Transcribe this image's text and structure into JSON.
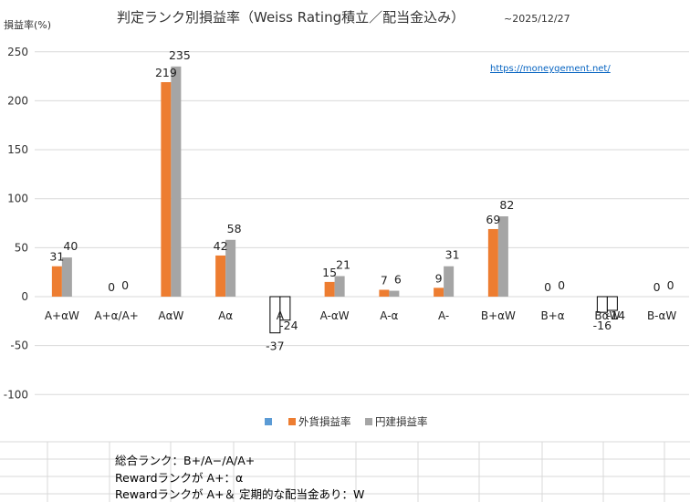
{
  "chart_data": {
    "type": "bar",
    "title": "判定ランク別損益率（Weiss Rating積立／配当金込み）",
    "date_note": "~2025/12/27",
    "ylabel": "損益率(%)",
    "source_link": "https://moneygement.net/",
    "ylim": [
      -100,
      250
    ],
    "yticks": [
      -100,
      -50,
      0,
      50,
      100,
      150,
      200,
      250
    ],
    "grid": true,
    "legend_position": "bottom",
    "categories": [
      "A+αW",
      "A+α/A+",
      "AαW",
      "Aα",
      "A",
      "A-αW",
      "A-α",
      "A-",
      "B+αW",
      "B+α",
      "BαW",
      "B-αW"
    ],
    "series": [
      {
        "name": "",
        "color": "#5B9BD5",
        "values": [
          null,
          null,
          null,
          null,
          null,
          null,
          null,
          null,
          null,
          null,
          null,
          null
        ]
      },
      {
        "name": "外貨損益率",
        "color": "#ED7D31",
        "values": [
          31,
          0,
          219,
          42,
          -37,
          15,
          7,
          9,
          69,
          0,
          -16,
          0
        ]
      },
      {
        "name": "円建損益率",
        "color": "#A5A5A5",
        "values": [
          40,
          0,
          235,
          58,
          -24,
          21,
          6,
          31,
          82,
          0,
          -14,
          0
        ]
      }
    ]
  },
  "notes": [
    "総合ランク：B+/A−/A/A+",
    "Rewardランクが A+：α",
    "Rewardランクが A+＆ 定期的な配当金あり：W"
  ]
}
